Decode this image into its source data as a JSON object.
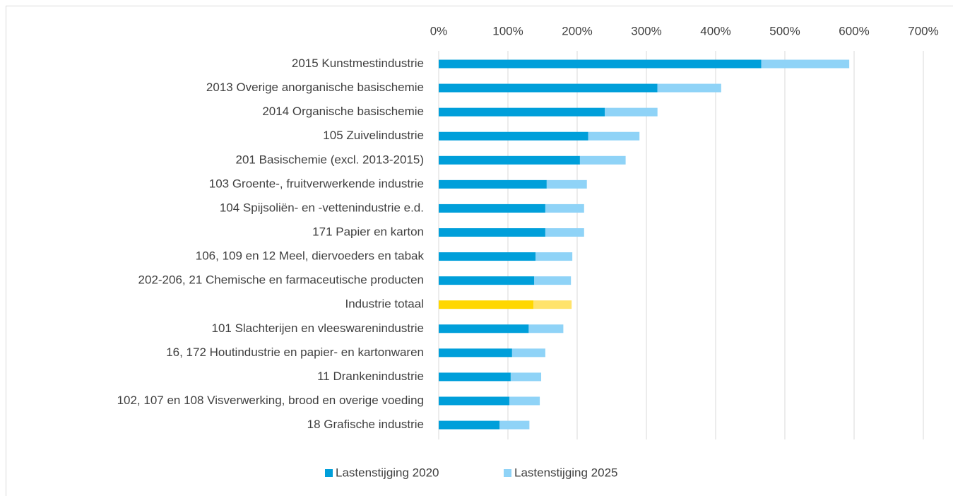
{
  "chart_data": {
    "type": "stacked_bar_horizontal",
    "categories": [
      "2015 Kunstmestindustrie",
      "2013 Overige anorganische basischemie",
      "2014 Organische basischemie",
      "105 Zuivelindustrie",
      "201 Basischemie (excl. 2013-2015)",
      "103 Groente-, fruitverwerkende industrie",
      "104 Spijsoliën- en -vettenindustrie e.d.",
      "171 Papier en karton",
      "106, 109 en 12 Meel, diervoeders en tabak",
      "202-206, 21 Chemische en farmaceutische producten",
      "Industrie totaal",
      "101 Slachterijen en vleeswarenindustrie",
      "16, 172 Houtindustrie en papier- en kartonwaren",
      "11 Drankenindustrie",
      "102, 107 en 108 Visverwerking, brood en overige voeding",
      "18 Grafische industrie"
    ],
    "series": [
      {
        "name": "Lastenstijging 2020",
        "color": "#009fda",
        "colors": [
          "#009fda",
          "#009fda",
          "#009fda",
          "#009fda",
          "#009fda",
          "#009fda",
          "#009fda",
          "#009fda",
          "#009fda",
          "#009fda",
          "#ffd700",
          "#009fda",
          "#009fda",
          "#009fda",
          "#009fda",
          "#009fda"
        ],
        "values": [
          466,
          316,
          240,
          216,
          204,
          156,
          154,
          154,
          140,
          138,
          137,
          130,
          106,
          104,
          102,
          88
        ]
      },
      {
        "name": "Lastenstijging 2025",
        "color": "#8fd3f7",
        "colors": [
          "#8fd3f7",
          "#8fd3f7",
          "#8fd3f7",
          "#8fd3f7",
          "#8fd3f7",
          "#8fd3f7",
          "#8fd3f7",
          "#8fd3f7",
          "#8fd3f7",
          "#8fd3f7",
          "#ffe36b",
          "#8fd3f7",
          "#8fd3f7",
          "#8fd3f7",
          "#8fd3f7",
          "#8fd3f7"
        ],
        "values": [
          127,
          92,
          76,
          74,
          66,
          58,
          56,
          56,
          53,
          53,
          55,
          50,
          48,
          44,
          44,
          43
        ]
      }
    ],
    "xlim": [
      0,
      700
    ],
    "xticks": [
      {
        "value": 0,
        "label": "0%"
      },
      {
        "value": 100,
        "label": "100%"
      },
      {
        "value": 200,
        "label": "200%"
      },
      {
        "value": 300,
        "label": "300%"
      },
      {
        "value": 400,
        "label": "400%"
      },
      {
        "value": 500,
        "label": "500%"
      },
      {
        "value": 600,
        "label": "600%"
      },
      {
        "value": 700,
        "label": "700%"
      }
    ],
    "grid": true,
    "legend": "bottom"
  }
}
